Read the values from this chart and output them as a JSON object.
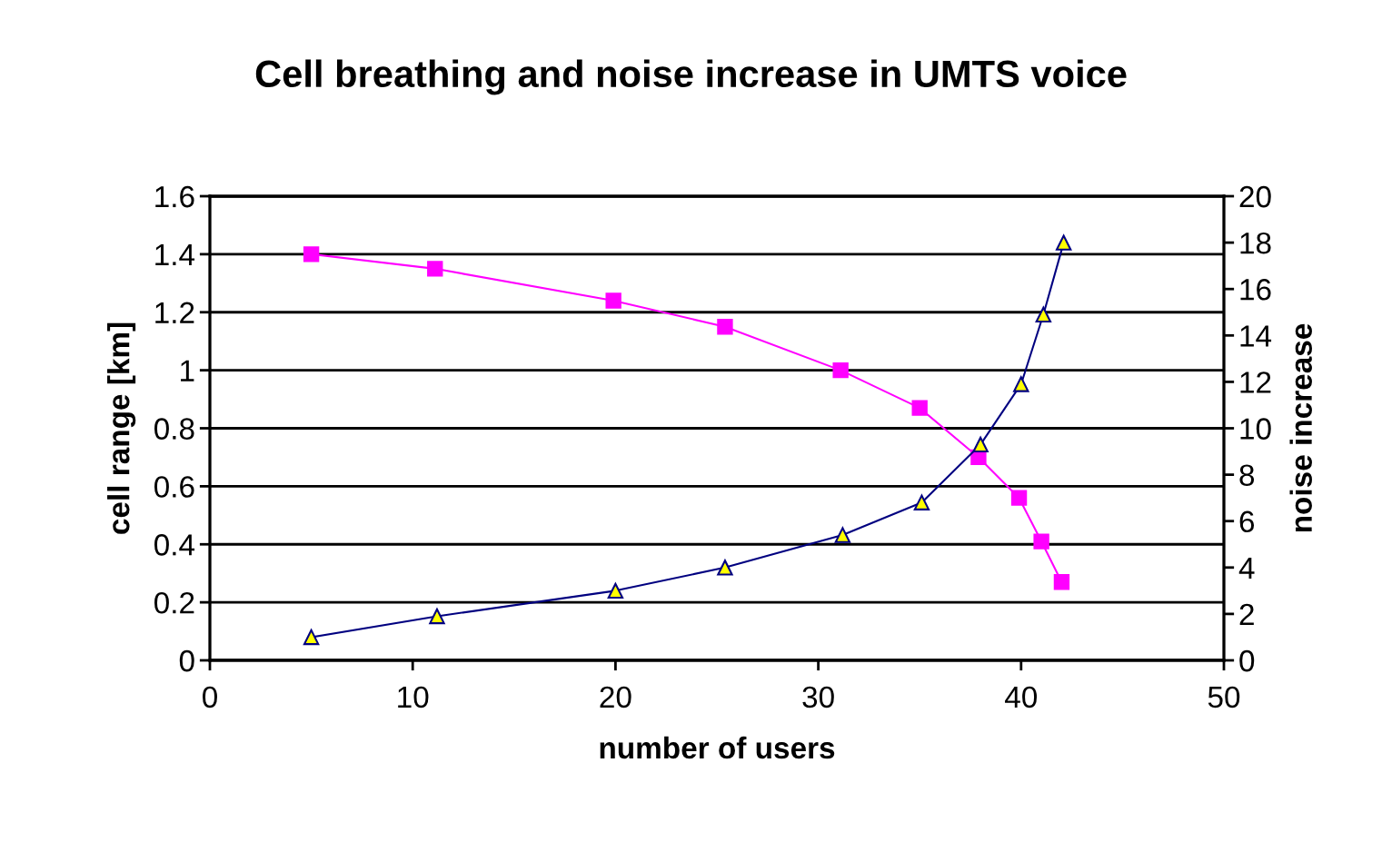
{
  "chart_data": {
    "type": "line",
    "title": "Cell breathing and noise increase in UMTS voice",
    "xlabel": "number of users",
    "ylabel": "cell range [km]",
    "y2label": "noise increase",
    "series": [
      {
        "color": "#ff00ff",
        "marker": "square",
        "x": [
          5.0,
          11.1,
          19.9,
          25.4,
          31.1,
          35.0,
          37.9,
          39.9,
          41.0,
          42.0
        ],
        "values": [
          1.4,
          1.35,
          1.24,
          1.15,
          1.0,
          0.87,
          0.7,
          0.56,
          0.41,
          0.27
        ]
      },
      {
        "color": "#000080",
        "marker": "triangle",
        "axis": "y2",
        "x": [
          5.0,
          11.2,
          20.0,
          25.4,
          31.2,
          35.1,
          38.0,
          40.0,
          41.1,
          42.1
        ],
        "values": [
          1.0,
          1.9,
          3.0,
          4.0,
          5.4,
          6.8,
          9.3,
          11.9,
          14.9,
          18.0
        ]
      }
    ],
    "xlim": [
      0,
      50
    ],
    "xticks": [
      0,
      10,
      20,
      30,
      40,
      50
    ],
    "ylim": [
      0,
      1.6
    ],
    "yticks": [
      0,
      0.2,
      0.4,
      0.6,
      0.8,
      1,
      1.2,
      1.4,
      1.6
    ],
    "y2lim": [
      0,
      20
    ],
    "y2ticks": [
      0,
      2,
      4,
      6,
      8,
      10,
      12,
      14,
      16,
      18,
      20
    ],
    "grid": "y",
    "line_style": "solid"
  }
}
